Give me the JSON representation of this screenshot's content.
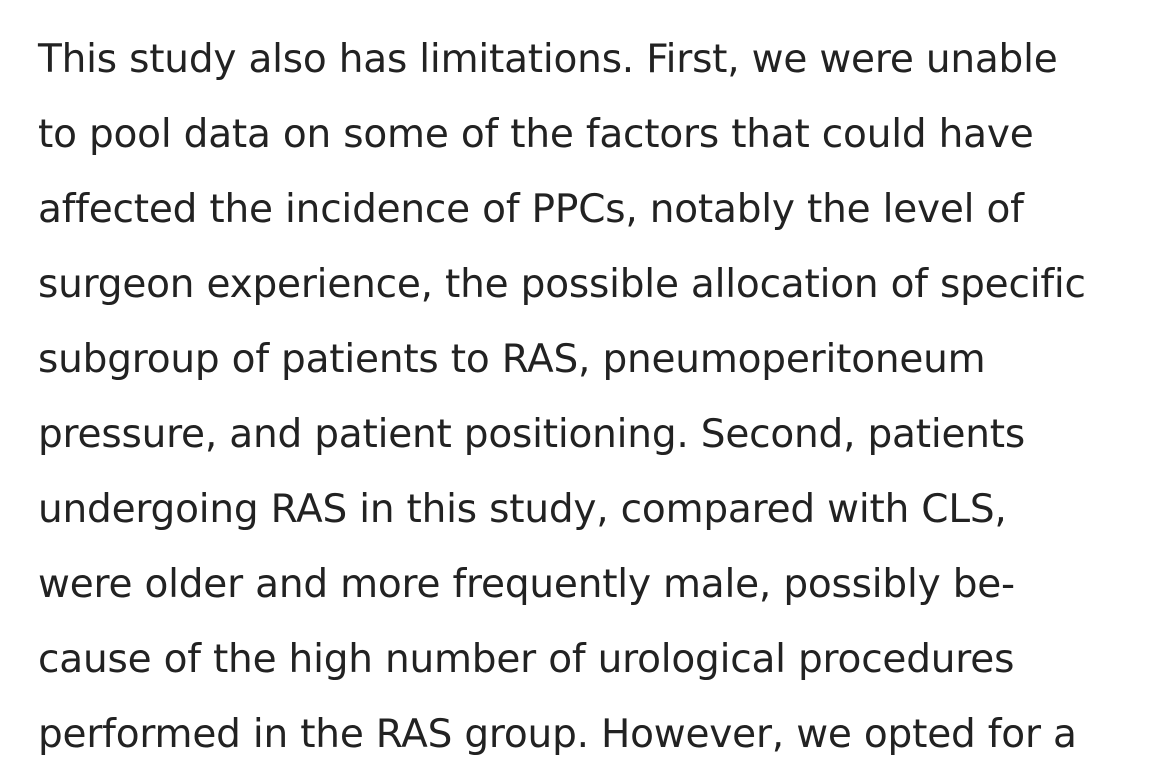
{
  "document": {
    "lines": [
      "This study also has limitations. First, we were unable",
      "to pool data on some of the factors that could have",
      "affected the incidence of PPCs, notably the level of",
      "surgeon experience, the possible allocation of specific",
      "subgroup of patients to RAS, pneumoperitoneum",
      "pressure, and patient positioning. Second, patients",
      "undergoing RAS in this study, compared with CLS,",
      "were older and more frequently male, possibly be-",
      "cause of the high number of urological procedures",
      "performed in the RAS group. However, we opted for a"
    ]
  }
}
